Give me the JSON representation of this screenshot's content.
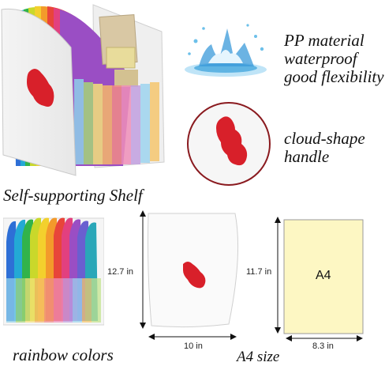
{
  "features": {
    "material_lines": [
      "PP material",
      "waterproof",
      "good flexibility"
    ],
    "handle_lines": [
      "cloud-shape",
      "handle"
    ]
  },
  "captions": {
    "shelf": "Self-supporting Shelf",
    "rainbow": "rainbow colors",
    "a4": "A4 size"
  },
  "dimensions": {
    "height": "12.7 in",
    "width": "10 in",
    "a4_height": "11.7 in",
    "a4_width": "8.3 in",
    "a4_label": "A4"
  },
  "colors": {
    "handle_red": "#d8202a",
    "paper_yellow": "#fdf7c3",
    "water_blue": "#3a9ad9"
  },
  "icons": {
    "splash": "water-splash-icon",
    "handle": "cloud-handle-icon"
  }
}
